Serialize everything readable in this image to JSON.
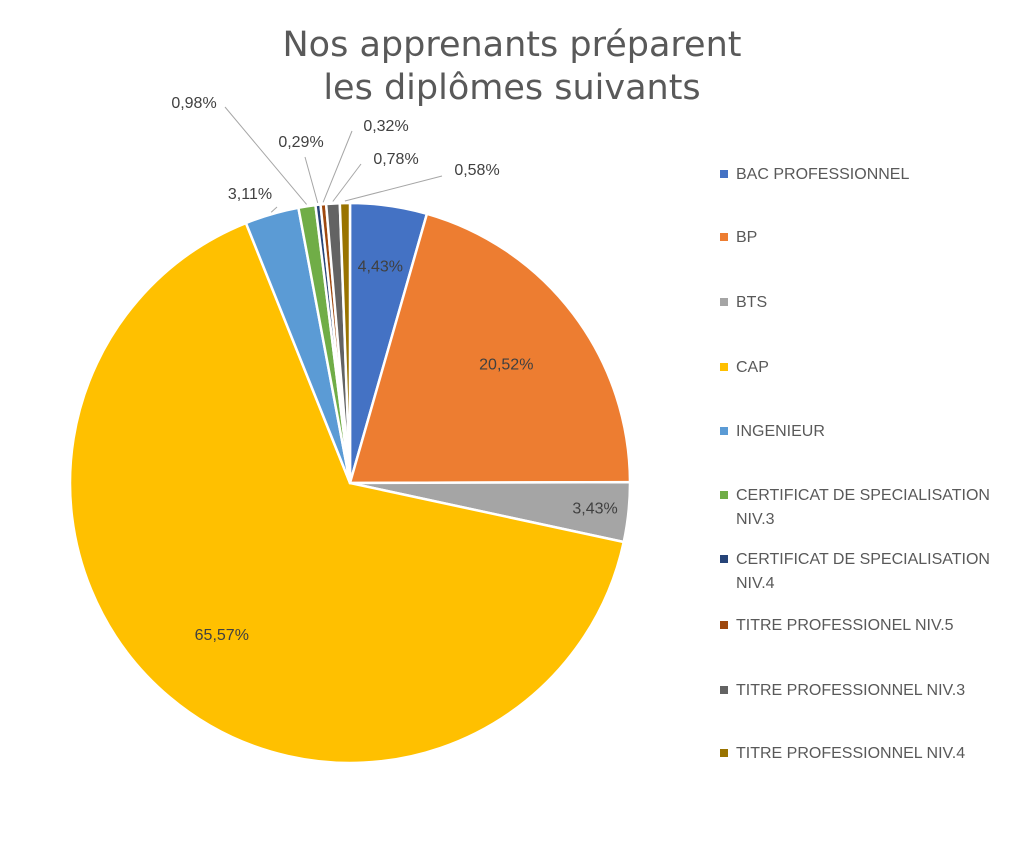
{
  "chart_data": {
    "type": "pie",
    "title": "Nos apprenants préparent les diplômes suivants",
    "title_lines": [
      "Nos apprenants préparent",
      "les diplômes suivants"
    ],
    "legend_position": "right",
    "slices": [
      {
        "name": "BAC PROFESSIONNEL",
        "legend_lines": [
          "BAC PROFESSIONNEL"
        ],
        "value": 4.43,
        "label": "4,43%",
        "color": "#4472C4"
      },
      {
        "name": "BP",
        "legend_lines": [
          "BP"
        ],
        "value": 20.52,
        "label": "20,52%",
        "color": "#ED7D31"
      },
      {
        "name": "BTS",
        "legend_lines": [
          "BTS"
        ],
        "value": 3.43,
        "label": "3,43%",
        "color": "#A5A5A5"
      },
      {
        "name": "CAP",
        "legend_lines": [
          "CAP"
        ],
        "value": 65.57,
        "label": "65,57%",
        "color": "#FFC000"
      },
      {
        "name": "INGENIEUR",
        "legend_lines": [
          "INGENIEUR"
        ],
        "value": 3.11,
        "label": "3,11%",
        "color": "#5B9BD5"
      },
      {
        "name": "CERTIFICAT DE SPECIALISATION NIV.3",
        "legend_lines": [
          "CERTIFICAT DE SPECIALISATION",
          "NIV.3"
        ],
        "value": 0.98,
        "label": "0,98%",
        "color": "#70AD47"
      },
      {
        "name": "CERTIFICAT DE SPECIALISATION NIV.4",
        "legend_lines": [
          "CERTIFICAT DE SPECIALISATION",
          "NIV.4"
        ],
        "value": 0.29,
        "label": "0,29%",
        "color": "#264478"
      },
      {
        "name": "TITRE PROFESSIONEL NIV.5",
        "legend_lines": [
          "TITRE PROFESSIONEL NIV.5"
        ],
        "value": 0.32,
        "label": "0,32%",
        "color": "#9E480E"
      },
      {
        "name": "TITRE PROFESSIONNEL NIV.3",
        "legend_lines": [
          "TITRE PROFESSIONNEL NIV.3"
        ],
        "value": 0.78,
        "label": "0,78%",
        "color": "#636363"
      },
      {
        "name": "TITRE PROFESSIONNEL NIV.4",
        "legend_lines": [
          "TITRE PROFESSIONNEL NIV.4"
        ],
        "value": 0.58,
        "label": "0,58%",
        "color": "#997300"
      }
    ]
  }
}
